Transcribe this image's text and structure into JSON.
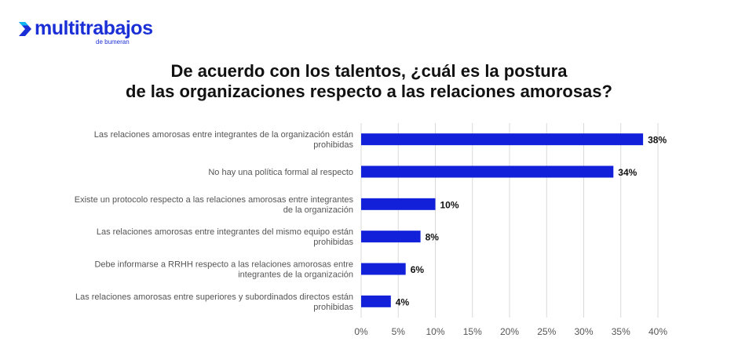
{
  "brand": {
    "logo_name": "multitrabajos",
    "logo_tagline": "de bumeran",
    "logo_icon": "chevron-arrow-icon",
    "accent_color": "#1b2fd6"
  },
  "chart_data": {
    "type": "bar",
    "orientation": "horizontal",
    "title_lines": [
      "De acuerdo con los talentos, ¿cuál es la postura",
      "de las organizaciones respecto a las relaciones amorosas?"
    ],
    "categories": [
      [
        "Las relaciones amorosas entre integrantes de la organización están",
        "prohibidas"
      ],
      [
        "No hay una política formal al respecto"
      ],
      [
        "Existe un protocolo respecto a las relaciones amorosas entre integrantes",
        "de la organización"
      ],
      [
        "Las relaciones amorosas entre integrantes del mismo equipo están",
        "prohibidas"
      ],
      [
        "Debe informarse a RRHH respecto a las relaciones amorosas entre",
        "integrantes de la organización"
      ],
      [
        "Las relaciones amorosas entre superiores y subordinados directos están",
        "prohibidas"
      ]
    ],
    "values": [
      38,
      34,
      10,
      8,
      6,
      4
    ],
    "value_labels": [
      "38%",
      "34%",
      "10%",
      "8%",
      "6%",
      "4%"
    ],
    "xlim": [
      0,
      40
    ],
    "ticks": [
      "0%",
      "5%",
      "10%",
      "15%",
      "20%",
      "25%",
      "30%",
      "35%",
      "40%"
    ],
    "tick_values": [
      0,
      5,
      10,
      15,
      20,
      25,
      30,
      35,
      40
    ],
    "bar_color": "#1221d9",
    "grid": true,
    "grid_color": "#d9d9d9",
    "legend": "none"
  }
}
